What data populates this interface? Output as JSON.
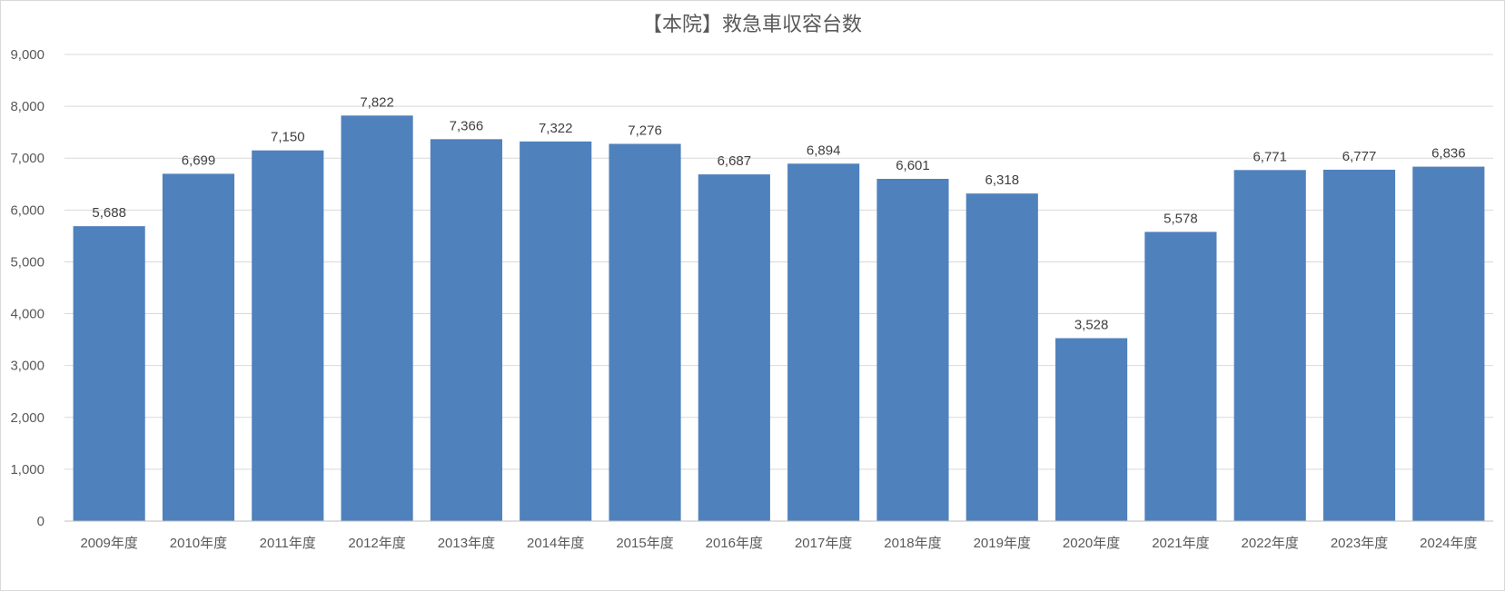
{
  "chart_data": {
    "type": "bar",
    "title": "【本院】救急車収容台数",
    "xlabel": "",
    "ylabel": "",
    "categories": [
      "2009年度",
      "2010年度",
      "2011年度",
      "2012年度",
      "2013年度",
      "2014年度",
      "2015年度",
      "2016年度",
      "2017年度",
      "2018年度",
      "2019年度",
      "2020年度",
      "2021年度",
      "2022年度",
      "2023年度",
      "2024年度"
    ],
    "values": [
      5688,
      6699,
      7150,
      7822,
      7366,
      7322,
      7276,
      6687,
      6894,
      6601,
      6318,
      3528,
      5578,
      6771,
      6777,
      6836
    ],
    "data_labels": [
      "5,688",
      "6,699",
      "7,150",
      "7,822",
      "7,366",
      "7,322",
      "7,276",
      "6,687",
      "6,894",
      "6,601",
      "6,318",
      "3,528",
      "5,578",
      "6,771",
      "6,777",
      "6,836"
    ],
    "ylim": [
      0,
      9000
    ],
    "yticks": [
      0,
      1000,
      2000,
      3000,
      4000,
      5000,
      6000,
      7000,
      8000,
      9000
    ],
    "ytick_labels": [
      "0",
      "1,000",
      "2,000",
      "3,000",
      "4,000",
      "5,000",
      "6,000",
      "7,000",
      "8,000",
      "9,000"
    ],
    "grid": true,
    "legend": "none",
    "colors": {
      "bar": "#4f81bd",
      "grid": "#d9d9d9",
      "axis": "#bfbfbf",
      "text": "#595959"
    }
  }
}
